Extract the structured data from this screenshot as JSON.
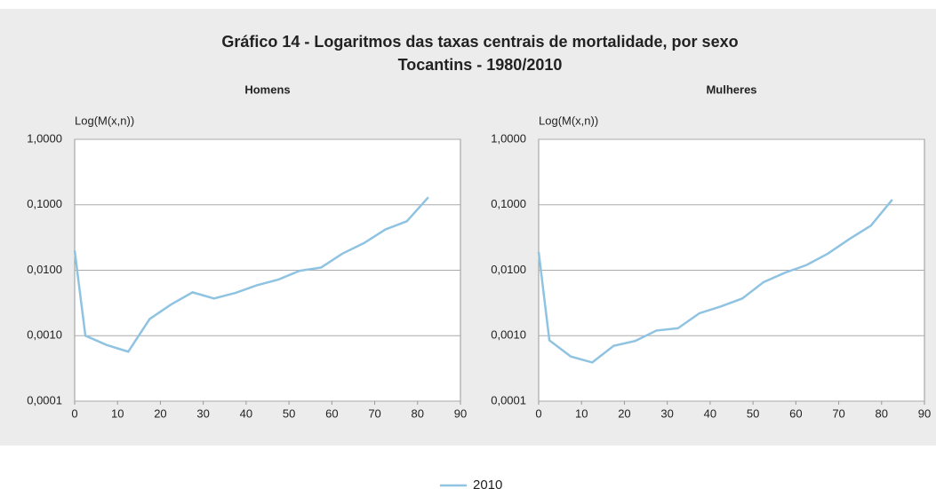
{
  "title": "Gráfico 14 - Logaritmos das taxas centrais de mortalidade, por sexo",
  "subtitle": "Tocantins - 1980/2010",
  "chart_data": [
    {
      "type": "line",
      "title": "Homens",
      "y_label": "Log(M(x,n))",
      "log_y": true,
      "grid": true,
      "x": [
        0,
        2.5,
        7.5,
        12.5,
        17.5,
        22.5,
        27.5,
        32.5,
        37.5,
        42.5,
        47.5,
        52.5,
        57.5,
        62.5,
        67.5,
        72.5,
        77.5,
        82.5
      ],
      "series": [
        {
          "name": "2010",
          "color": "#8fc3e2",
          "values": [
            0.02,
            0.001,
            0.00072,
            0.00057,
            0.0018,
            0.003,
            0.0046,
            0.0037,
            0.0045,
            0.0059,
            0.0072,
            0.0098,
            0.011,
            0.018,
            0.026,
            0.042,
            0.056,
            0.13
          ]
        }
      ],
      "xlim": [
        0,
        90
      ],
      "xticks": [
        0,
        10,
        20,
        30,
        40,
        50,
        60,
        70,
        80,
        90
      ],
      "ylim": [
        0.0001,
        1
      ],
      "yticks": [
        {
          "value": 0.0001,
          "label": "0,0001"
        },
        {
          "value": 0.001,
          "label": "0,0010"
        },
        {
          "value": 0.01,
          "label": "0,0100"
        },
        {
          "value": 0.1,
          "label": "0,1000"
        },
        {
          "value": 1,
          "label": "1,0000"
        }
      ]
    },
    {
      "type": "line",
      "title": "Mulheres",
      "y_label": "Log(M(x,n))",
      "log_y": true,
      "grid": true,
      "x": [
        0,
        2.5,
        7.5,
        12.5,
        17.5,
        22.5,
        27.5,
        32.5,
        37.5,
        42.5,
        47.5,
        52.5,
        57.5,
        62.5,
        67.5,
        72.5,
        77.5,
        82.5
      ],
      "series": [
        {
          "name": "2010",
          "color": "#8fc3e2",
          "values": [
            0.019,
            0.00085,
            0.00048,
            0.00039,
            0.0007,
            0.00083,
            0.0012,
            0.0013,
            0.0022,
            0.0028,
            0.0037,
            0.0066,
            0.0092,
            0.012,
            0.018,
            0.03,
            0.048,
            0.12
          ]
        }
      ],
      "xlim": [
        0,
        90
      ],
      "xticks": [
        0,
        10,
        20,
        30,
        40,
        50,
        60,
        70,
        80,
        90
      ],
      "ylim": [
        0.0001,
        1
      ],
      "yticks": [
        {
          "value": 0.0001,
          "label": "0,0001"
        },
        {
          "value": 0.001,
          "label": "0,0010"
        },
        {
          "value": 0.01,
          "label": "0,0100"
        },
        {
          "value": 0.1,
          "label": "0,1000"
        },
        {
          "value": 1,
          "label": "1,0000"
        }
      ]
    }
  ]
}
